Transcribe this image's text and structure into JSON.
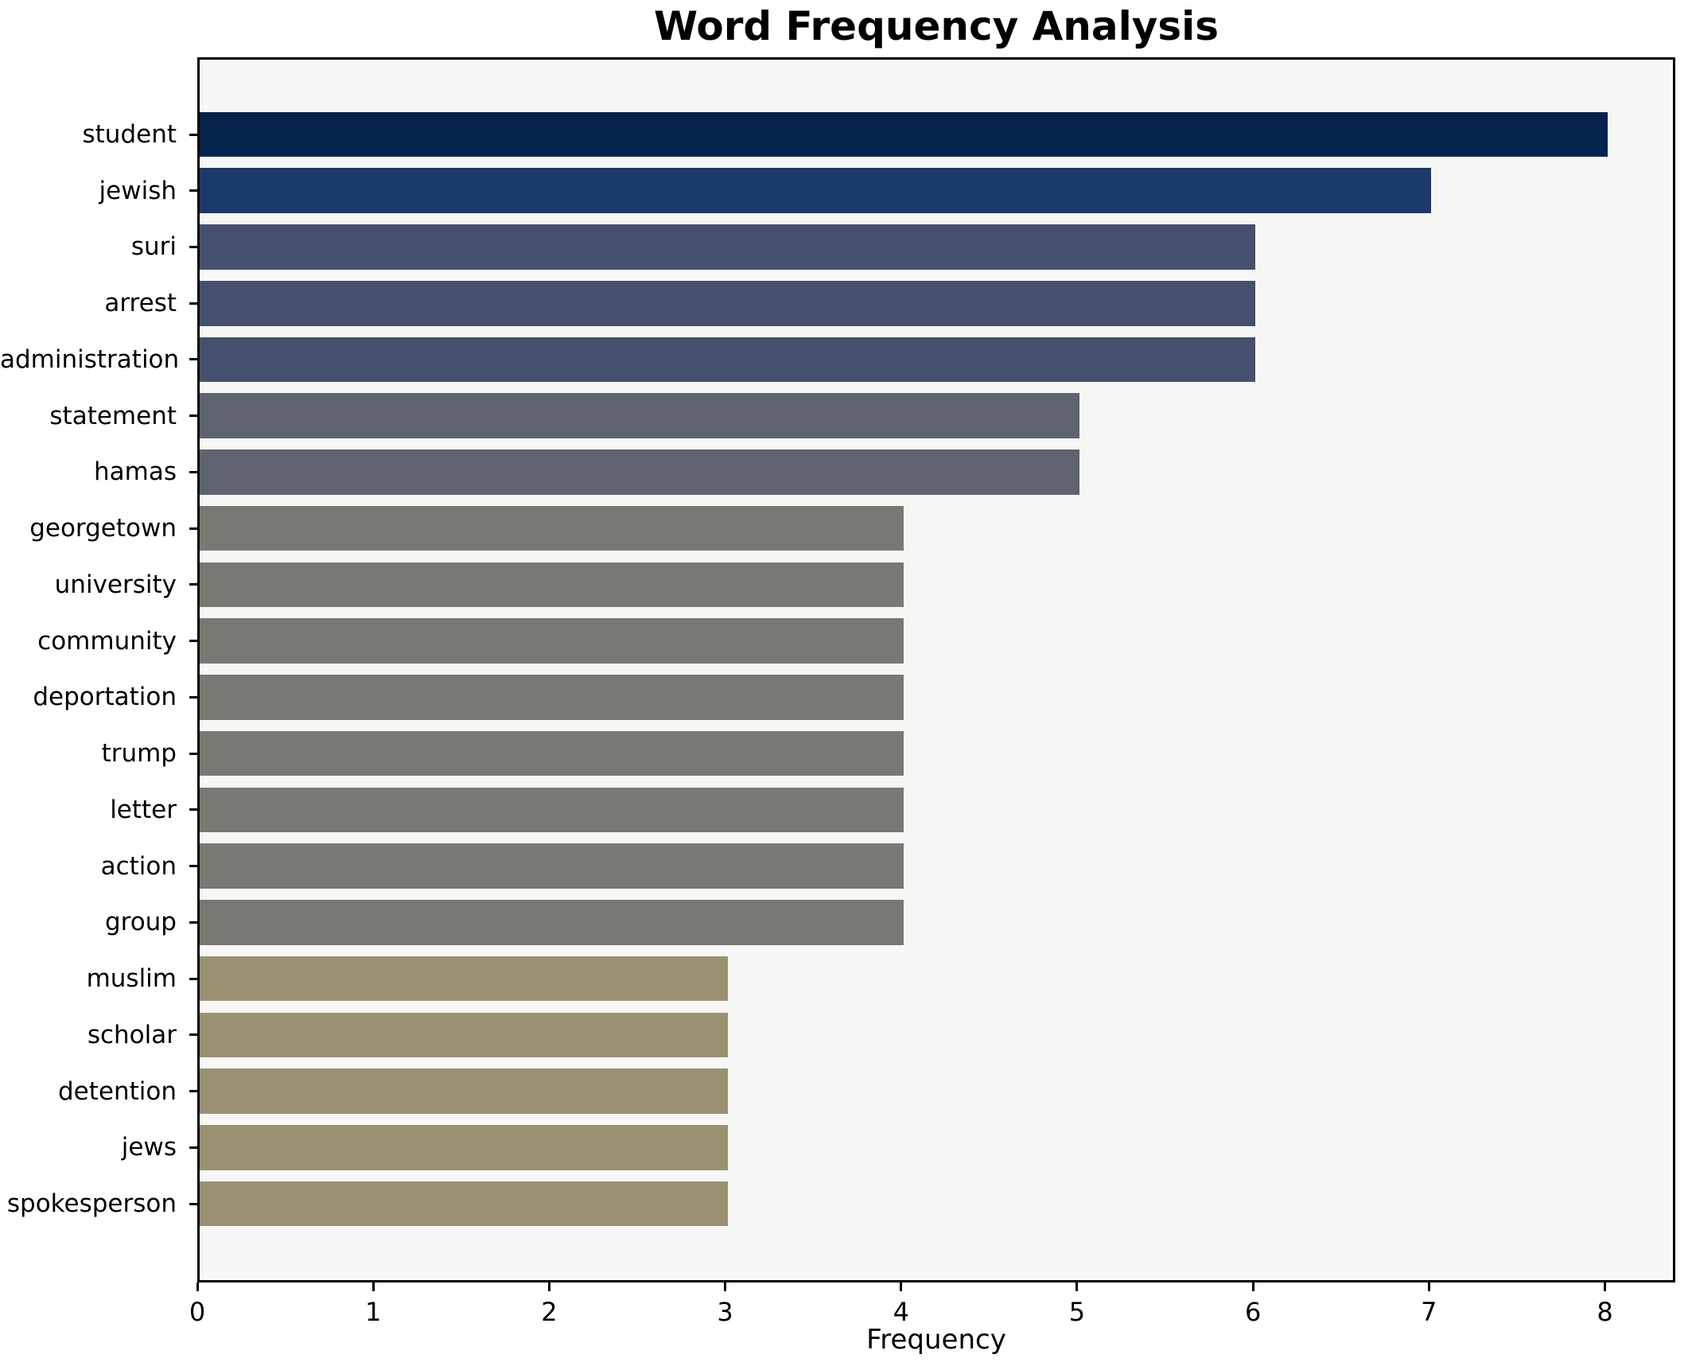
{
  "chart_data": {
    "type": "bar",
    "orientation": "horizontal",
    "title": "Word Frequency Analysis",
    "xlabel": "Frequency",
    "ylabel": "",
    "categories": [
      "student",
      "jewish",
      "suri",
      "arrest",
      "administration",
      "statement",
      "hamas",
      "georgetown",
      "university",
      "community",
      "deportation",
      "trump",
      "letter",
      "action",
      "group",
      "muslim",
      "scholar",
      "detention",
      "jews",
      "spokesperson"
    ],
    "values": [
      8,
      7,
      6,
      6,
      6,
      5,
      5,
      4,
      4,
      4,
      4,
      4,
      4,
      4,
      4,
      3,
      3,
      3,
      3,
      3
    ],
    "bar_colors": [
      "#03234d",
      "#1d3a6d",
      "#45506f",
      "#45506f",
      "#45506f",
      "#5e636f",
      "#5e636f",
      "#7a7873",
      "#7a7873",
      "#7a7873",
      "#7a7873",
      "#7a7873",
      "#7a7873",
      "#7a7873",
      "#7a7873",
      "#9a9173",
      "#9a9173",
      "#9a9173",
      "#9a9173",
      "#9a9173"
    ],
    "xlim": [
      0,
      8.4
    ],
    "xticks": [
      0,
      1,
      2,
      3,
      4,
      5,
      6,
      7,
      8
    ],
    "grid": false,
    "legend_position": "none",
    "plot_background": "#f7f7f5",
    "figure_background": "#ffffff",
    "spine_color": "#000000",
    "text_color": "#000000"
  }
}
